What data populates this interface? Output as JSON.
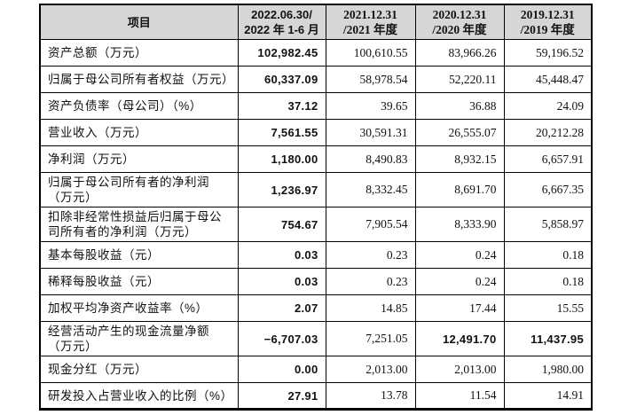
{
  "table": {
    "header": [
      {
        "l1": "项目",
        "l2": ""
      },
      {
        "l1": "2022.06.30/",
        "l2": "2022 年 1-6 月"
      },
      {
        "l1": "2021.12.31",
        "l2": "/2021 年度"
      },
      {
        "l1": "2020.12.31",
        "l2": "/2020 年度"
      },
      {
        "l1": "2019.12.31",
        "l2": "/2019 年度"
      }
    ],
    "rows": [
      {
        "label": "资产总额（万元）",
        "values": [
          "102,982.45",
          "100,610.55",
          "83,966.26",
          "59,196.52"
        ],
        "bold": [
          true,
          false,
          false,
          false
        ]
      },
      {
        "label": "归属于母公司所有者权益（万元）",
        "values": [
          "60,337.09",
          "58,978.54",
          "52,220.11",
          "45,448.47"
        ],
        "bold": [
          true,
          false,
          false,
          false
        ]
      },
      {
        "label": "资产负债率（母公司）（%）",
        "values": [
          "37.12",
          "39.65",
          "36.88",
          "24.09"
        ],
        "bold": [
          true,
          false,
          false,
          false
        ]
      },
      {
        "label": "营业收入（万元）",
        "values": [
          "7,561.55",
          "30,591.31",
          "26,555.07",
          "20,212.28"
        ],
        "bold": [
          true,
          false,
          false,
          false
        ]
      },
      {
        "label": "净利润（万元）",
        "values": [
          "1,180.00",
          "8,490.83",
          "8,932.15",
          "6,657.91"
        ],
        "bold": [
          true,
          false,
          false,
          false
        ]
      },
      {
        "label": "归属于母公司所有者的净利润（万元）",
        "values": [
          "1,236.97",
          "8,332.45",
          "8,691.70",
          "6,667.35"
        ],
        "bold": [
          true,
          false,
          false,
          false
        ]
      },
      {
        "label": "扣除非经常性损益后归属于母公司所有者的净利润（万元）",
        "values": [
          "754.67",
          "7,905.54",
          "8,333.90",
          "5,858.97"
        ],
        "bold": [
          true,
          false,
          false,
          false
        ]
      },
      {
        "label": "基本每股收益（元）",
        "values": [
          "0.03",
          "0.23",
          "0.24",
          "0.18"
        ],
        "bold": [
          true,
          false,
          false,
          false
        ]
      },
      {
        "label": "稀释每股收益（元）",
        "values": [
          "0.03",
          "0.23",
          "0.24",
          "0.18"
        ],
        "bold": [
          true,
          false,
          false,
          false
        ]
      },
      {
        "label": "加权平均净资产收益率（%）",
        "values": [
          "2.07",
          "14.85",
          "17.44",
          "15.55"
        ],
        "bold": [
          true,
          false,
          false,
          false
        ]
      },
      {
        "label": "经营活动产生的现金流量净额（万元）",
        "values": [
          "−6,707.03",
          "7,251.05",
          "12,491.70",
          "11,437.95"
        ],
        "bold": [
          true,
          false,
          true,
          true
        ]
      },
      {
        "label": "现金分红（万元）",
        "values": [
          "0.00",
          "2,013.00",
          "2,013.00",
          "1,980.00"
        ],
        "bold": [
          true,
          false,
          false,
          false
        ]
      },
      {
        "label": "研发投入占营业收入的比例（%）",
        "values": [
          "27.91",
          "13.78",
          "11.54",
          "14.91"
        ],
        "bold": [
          true,
          false,
          false,
          false
        ]
      }
    ]
  },
  "colors": {
    "header_background": "#d6d6d6",
    "border": "#000000",
    "text": "#111111",
    "page_background": "#ffffff"
  }
}
